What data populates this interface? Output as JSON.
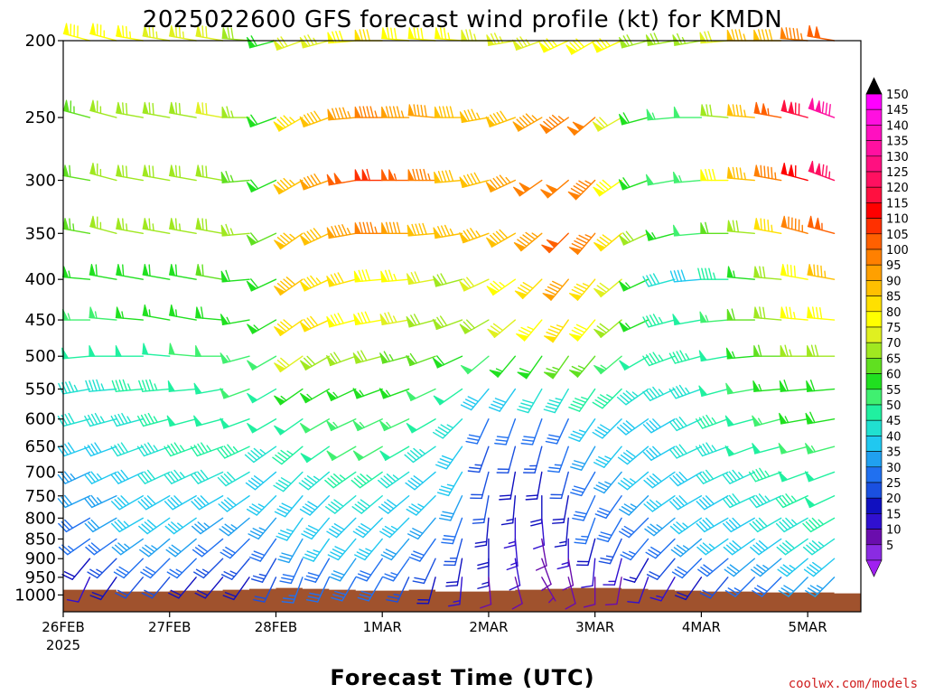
{
  "chart_data": {
    "type": "wind-barb-time-height",
    "title": "2025022600 GFS forecast wind profile (kt) for KMDN",
    "xlabel": "Forecast Time (UTC)",
    "ylabel": "",
    "credit": "coolwx.com/models",
    "y_axis": {
      "scale": "pressure (log)",
      "ticks": [
        200,
        250,
        300,
        350,
        400,
        450,
        500,
        550,
        600,
        650,
        700,
        750,
        800,
        850,
        900,
        950,
        1000
      ],
      "range": [
        1050,
        200
      ]
    },
    "x_axis": {
      "ticks": [
        {
          "label": "26FEB",
          "sublabel": "2025",
          "hour": 0
        },
        {
          "label": "27FEB",
          "hour": 24
        },
        {
          "label": "28FEB",
          "hour": 48
        },
        {
          "label": "1MAR",
          "hour": 72
        },
        {
          "label": "2MAR",
          "hour": 96
        },
        {
          "label": "3MAR",
          "hour": 120
        },
        {
          "label": "4MAR",
          "hour": 144
        },
        {
          "label": "5MAR",
          "hour": 168
        }
      ],
      "range_hours": [
        0,
        180
      ]
    },
    "colorbar": {
      "unit": "kt",
      "levels": [
        5,
        10,
        15,
        20,
        25,
        30,
        35,
        40,
        45,
        50,
        55,
        60,
        65,
        70,
        75,
        80,
        85,
        90,
        95,
        100,
        105,
        110,
        115,
        120,
        125,
        130,
        135,
        140,
        145,
        150
      ],
      "colors": [
        "#8a2be2",
        "#6a0dad",
        "#3010d0",
        "#1010c0",
        "#1a50e0",
        "#2070f0",
        "#20a0f0",
        "#20c8f0",
        "#20e0d0",
        "#20f0a0",
        "#40f070",
        "#20e020",
        "#60e020",
        "#a0e820",
        "#e0f020",
        "#ffff00",
        "#ffe000",
        "#ffc000",
        "#ffa000",
        "#ff8000",
        "#ff6000",
        "#ff3000",
        "#ff0000",
        "#ff1040",
        "#ff1060",
        "#ff1080",
        "#ff10a0",
        "#ff10c0",
        "#ff10e0",
        "#ff00ff"
      ]
    },
    "levels_hpa": [
      200,
      250,
      300,
      350,
      400,
      450,
      500,
      550,
      600,
      650,
      700,
      750,
      800,
      850,
      900,
      950
    ],
    "hours": [
      0,
      6,
      12,
      18,
      24,
      30,
      36,
      42,
      48,
      54,
      60,
      66,
      72,
      78,
      84,
      90,
      96,
      102,
      108,
      114,
      120,
      126,
      132,
      138,
      144,
      150,
      156,
      162,
      168,
      174,
      180
    ],
    "wind_profile": {
      "description": "approximate wind speed (kt) and meteorological direction (deg) at each level (rows, 200->950 hPa) and forecast hour (cols)",
      "speed": [
        [
          78,
          78,
          77,
          76,
          75,
          74,
          72,
          70,
          60,
          72,
          75,
          80,
          82,
          80,
          78,
          76,
          75,
          74,
          75,
          77,
          80,
          76,
          70,
          68,
          66,
          72,
          86,
          90,
          96,
          102,
          110
        ],
        [
          62,
          64,
          66,
          68,
          68,
          70,
          72,
          66,
          60,
          84,
          90,
          94,
          96,
          95,
          92,
          88,
          86,
          90,
          94,
          96,
          98,
          72,
          60,
          54,
          52,
          70,
          86,
          104,
          118,
          132,
          138
        ],
        [
          60,
          62,
          66,
          68,
          68,
          68,
          70,
          64,
          58,
          86,
          92,
          102,
          110,
          104,
          96,
          90,
          88,
          94,
          98,
          100,
          96,
          78,
          60,
          52,
          54,
          78,
          86,
          96,
          112,
          125,
          128
        ],
        [
          62,
          64,
          66,
          66,
          66,
          66,
          68,
          66,
          62,
          86,
          90,
          94,
          96,
          92,
          90,
          86,
          86,
          90,
          94,
          102,
          96,
          82,
          68,
          56,
          52,
          62,
          70,
          84,
          96,
          104,
          106
        ],
        [
          54,
          56,
          58,
          60,
          60,
          60,
          62,
          60,
          58,
          88,
          84,
          82,
          80,
          76,
          72,
          70,
          72,
          76,
          82,
          92,
          84,
          72,
          56,
          42,
          38,
          46,
          56,
          68,
          80,
          86,
          88
        ],
        [
          52,
          54,
          54,
          56,
          56,
          56,
          58,
          56,
          56,
          82,
          82,
          80,
          78,
          74,
          70,
          68,
          68,
          72,
          76,
          84,
          80,
          68,
          56,
          46,
          48,
          54,
          62,
          70,
          76,
          80,
          82
        ],
        [
          46,
          48,
          48,
          50,
          50,
          52,
          52,
          54,
          52,
          72,
          70,
          70,
          68,
          64,
          62,
          60,
          52,
          56,
          60,
          64,
          64,
          54,
          48,
          46,
          46,
          50,
          56,
          62,
          66,
          68,
          70
        ],
        [
          42,
          44,
          44,
          46,
          46,
          50,
          50,
          52,
          50,
          56,
          56,
          56,
          56,
          56,
          52,
          48,
          40,
          38,
          42,
          44,
          46,
          46,
          44,
          44,
          44,
          48,
          52,
          56,
          58,
          60,
          62
        ],
        [
          40,
          42,
          44,
          44,
          46,
          48,
          48,
          50,
          48,
          50,
          52,
          54,
          54,
          54,
          48,
          44,
          30,
          28,
          30,
          30,
          36,
          38,
          40,
          40,
          42,
          46,
          50,
          54,
          56,
          58,
          60
        ],
        [
          36,
          38,
          40,
          42,
          44,
          46,
          46,
          46,
          44,
          46,
          48,
          52,
          52,
          50,
          44,
          40,
          24,
          22,
          24,
          26,
          32,
          36,
          38,
          40,
          42,
          44,
          48,
          50,
          52,
          54,
          56
        ],
        [
          32,
          34,
          36,
          40,
          42,
          44,
          42,
          42,
          40,
          42,
          44,
          46,
          46,
          44,
          40,
          36,
          22,
          18,
          20,
          22,
          30,
          34,
          36,
          38,
          40,
          42,
          44,
          46,
          48,
          50,
          52
        ],
        [
          30,
          32,
          34,
          38,
          40,
          40,
          38,
          38,
          36,
          38,
          40,
          42,
          42,
          40,
          36,
          32,
          22,
          16,
          18,
          20,
          28,
          30,
          34,
          36,
          38,
          40,
          42,
          44,
          46,
          48,
          50
        ],
        [
          26,
          30,
          32,
          36,
          38,
          36,
          34,
          34,
          34,
          36,
          38,
          40,
          40,
          36,
          32,
          28,
          20,
          14,
          12,
          16,
          26,
          28,
          30,
          34,
          36,
          38,
          40,
          42,
          44,
          46,
          48
        ],
        [
          22,
          26,
          30,
          34,
          34,
          32,
          30,
          30,
          30,
          32,
          36,
          38,
          36,
          32,
          28,
          24,
          20,
          14,
          10,
          14,
          20,
          24,
          26,
          30,
          34,
          36,
          38,
          40,
          42,
          44,
          46
        ],
        [
          14,
          18,
          24,
          28,
          28,
          26,
          24,
          24,
          24,
          28,
          30,
          32,
          30,
          26,
          22,
          18,
          16,
          12,
          8,
          10,
          12,
          14,
          16,
          22,
          28,
          30,
          32,
          34,
          36,
          40,
          42
        ],
        [
          8,
          12,
          18,
          22,
          22,
          20,
          20,
          20,
          22,
          26,
          28,
          30,
          28,
          24,
          18,
          14,
          10,
          8,
          6,
          8,
          8,
          10,
          12,
          14,
          18,
          22,
          26,
          30,
          32,
          34,
          36
        ]
      ],
      "direction": [
        [
          285,
          285,
          285,
          280,
          280,
          280,
          280,
          275,
          255,
          250,
          255,
          265,
          270,
          275,
          275,
          275,
          270,
          260,
          250,
          245,
          240,
          245,
          255,
          260,
          260,
          265,
          270,
          270,
          275,
          280,
          285
        ],
        [
          285,
          285,
          285,
          280,
          280,
          280,
          280,
          270,
          250,
          240,
          250,
          265,
          270,
          270,
          275,
          270,
          260,
          250,
          240,
          235,
          230,
          240,
          255,
          265,
          270,
          275,
          275,
          280,
          285,
          290,
          295
        ],
        [
          280,
          280,
          285,
          280,
          280,
          280,
          280,
          265,
          245,
          240,
          250,
          260,
          270,
          270,
          270,
          265,
          255,
          245,
          235,
          230,
          225,
          235,
          250,
          260,
          265,
          270,
          275,
          280,
          285,
          290,
          295
        ],
        [
          280,
          280,
          285,
          280,
          280,
          280,
          280,
          265,
          245,
          235,
          245,
          260,
          270,
          270,
          265,
          260,
          250,
          240,
          230,
          225,
          220,
          230,
          245,
          255,
          265,
          270,
          275,
          280,
          285,
          285,
          285
        ],
        [
          275,
          275,
          280,
          280,
          280,
          280,
          280,
          265,
          245,
          235,
          245,
          255,
          265,
          265,
          260,
          255,
          245,
          235,
          225,
          220,
          220,
          230,
          245,
          255,
          265,
          270,
          275,
          275,
          280,
          280,
          280
        ],
        [
          270,
          270,
          275,
          275,
          280,
          280,
          275,
          260,
          240,
          235,
          245,
          255,
          260,
          260,
          255,
          250,
          240,
          230,
          220,
          215,
          220,
          230,
          245,
          255,
          260,
          265,
          270,
          275,
          275,
          275,
          275
        ],
        [
          265,
          265,
          270,
          270,
          275,
          275,
          270,
          255,
          240,
          235,
          240,
          250,
          255,
          255,
          250,
          245,
          230,
          220,
          215,
          215,
          220,
          230,
          240,
          250,
          255,
          260,
          265,
          270,
          270,
          270,
          270
        ],
        [
          260,
          260,
          265,
          265,
          265,
          265,
          260,
          250,
          240,
          235,
          240,
          245,
          250,
          250,
          245,
          235,
          220,
          215,
          210,
          210,
          215,
          225,
          235,
          245,
          250,
          255,
          260,
          265,
          265,
          265,
          265
        ],
        [
          255,
          255,
          255,
          255,
          255,
          255,
          255,
          250,
          240,
          235,
          240,
          245,
          245,
          245,
          240,
          225,
          205,
          200,
          200,
          205,
          215,
          225,
          235,
          240,
          245,
          250,
          255,
          255,
          260,
          260,
          260
        ],
        [
          250,
          250,
          250,
          250,
          250,
          250,
          250,
          245,
          235,
          230,
          235,
          240,
          240,
          240,
          235,
          215,
          200,
          195,
          195,
          200,
          210,
          220,
          230,
          240,
          245,
          250,
          250,
          255,
          255,
          255,
          255
        ],
        [
          245,
          245,
          245,
          245,
          245,
          245,
          245,
          240,
          230,
          225,
          230,
          235,
          235,
          235,
          230,
          210,
          195,
          190,
          190,
          195,
          210,
          220,
          230,
          235,
          240,
          245,
          245,
          250,
          250,
          250,
          250
        ],
        [
          245,
          245,
          245,
          240,
          240,
          240,
          240,
          235,
          225,
          220,
          225,
          230,
          230,
          230,
          225,
          205,
          190,
          185,
          180,
          190,
          205,
          215,
          225,
          235,
          240,
          240,
          245,
          245,
          245,
          245,
          245
        ],
        [
          240,
          240,
          240,
          240,
          235,
          235,
          235,
          230,
          220,
          215,
          220,
          225,
          225,
          225,
          220,
          200,
          185,
          180,
          175,
          185,
          200,
          210,
          225,
          230,
          235,
          240,
          240,
          240,
          240,
          240,
          240
        ],
        [
          235,
          235,
          235,
          235,
          230,
          230,
          230,
          225,
          215,
          210,
          215,
          220,
          220,
          220,
          215,
          195,
          180,
          175,
          170,
          180,
          195,
          205,
          220,
          225,
          230,
          235,
          235,
          235,
          235,
          235,
          235
        ],
        [
          215,
          220,
          225,
          225,
          225,
          225,
          225,
          220,
          210,
          205,
          210,
          215,
          215,
          215,
          205,
          190,
          180,
          170,
          160,
          170,
          185,
          195,
          210,
          220,
          225,
          230,
          230,
          230,
          230,
          230,
          230
        ],
        [
          200,
          205,
          215,
          220,
          220,
          220,
          220,
          215,
          205,
          200,
          205,
          210,
          210,
          205,
          195,
          185,
          175,
          165,
          150,
          165,
          180,
          190,
          200,
          210,
          215,
          220,
          225,
          225,
          225,
          225,
          225
        ]
      ]
    },
    "terrain_color": "#a0522d",
    "surface_hpa_approx": 985
  }
}
